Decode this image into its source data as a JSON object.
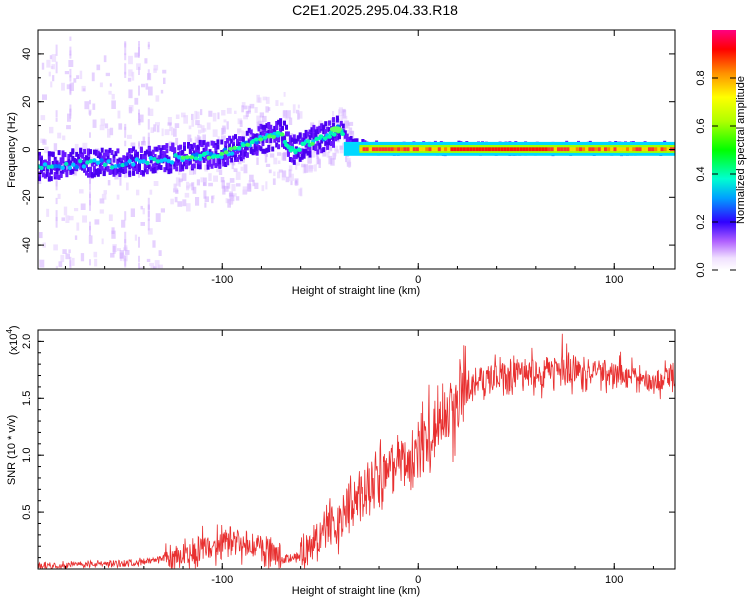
{
  "title": "C2E1.2025.295.04.33.R18",
  "chart_data": [
    {
      "type": "heatmap",
      "xlabel": "Height of straight line (km)",
      "ylabel": "Frequency (Hz)",
      "xlim": [
        -194,
        131
      ],
      "ylim": [
        -50,
        50
      ],
      "xticks": [
        -100,
        0,
        100
      ],
      "yticks": [
        -40,
        -20,
        0,
        20,
        40
      ],
      "ridge": {
        "x": [
          -194,
          -175,
          -150,
          -125,
          -100,
          -85,
          -75,
          -70,
          -65,
          -55,
          -45,
          -40,
          -35,
          -30,
          -20,
          0,
          20,
          60,
          100,
          131
        ],
        "y": [
          -8,
          -6,
          -6,
          -4,
          -2,
          3,
          5,
          7,
          -1,
          3,
          6,
          9,
          3,
          1,
          0,
          0,
          0,
          0,
          0,
          0
        ]
      },
      "colorbar": {
        "label": "Normalized spectral amplitude",
        "range": [
          0,
          1
        ],
        "ticks": [
          "0.0",
          "0.2",
          "0.4",
          "0.6",
          "0.8"
        ]
      }
    },
    {
      "type": "line",
      "xlabel": "Height of straight line (km)",
      "ylabel": "SNR (10 * v/v)",
      "scale_note": "(x10",
      "scale_exp": "4",
      "xlim": [
        -194,
        131
      ],
      "ylim": [
        0,
        2.1
      ],
      "xticks": [
        -100,
        0,
        100
      ],
      "yticks": [
        "0.5",
        "1.0",
        "1.5",
        "2.0"
      ],
      "color": "#e83030",
      "trend": {
        "x": [
          -194,
          -150,
          -130,
          -120,
          -110,
          -100,
          -90,
          -80,
          -70,
          -60,
          -50,
          -40,
          -30,
          -20,
          -10,
          0,
          10,
          20,
          30,
          40,
          50,
          60,
          70,
          80,
          90,
          100,
          110,
          120,
          131
        ],
        "y": [
          0.03,
          0.05,
          0.08,
          0.12,
          0.18,
          0.23,
          0.23,
          0.18,
          0.08,
          0.12,
          0.28,
          0.45,
          0.62,
          0.8,
          0.93,
          1.0,
          1.25,
          1.48,
          1.65,
          1.7,
          1.72,
          1.73,
          1.74,
          1.72,
          1.72,
          1.7,
          1.68,
          1.66,
          1.65
        ]
      }
    }
  ]
}
